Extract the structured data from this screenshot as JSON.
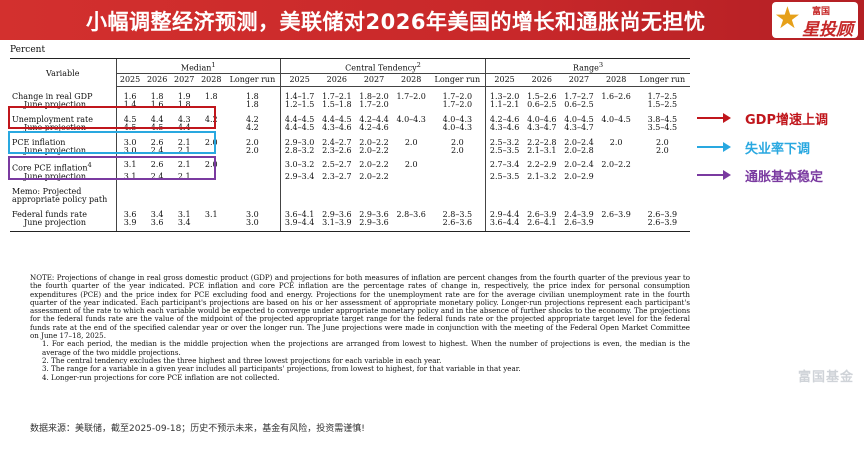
{
  "banner": {
    "title": "小幅调整经济预测，美联储对2026年美国的增长和通胀尚无担忧"
  },
  "logo": {
    "top": "富国",
    "main": "星投顾"
  },
  "table": {
    "unit": "Percent",
    "variable_header": "Variable",
    "groups": {
      "median": "Median",
      "median_sup": "1",
      "ct": "Central Tendency",
      "ct_sup": "2",
      "range": "Range",
      "range_sup": "3"
    },
    "years": [
      "2025",
      "2026",
      "2027",
      "2028",
      "Longer run"
    ],
    "rows": [
      {
        "label": "Change in real GDP",
        "sub": "June projection",
        "median": [
          [
            "1.6",
            "1.8",
            "1.9",
            "1.8",
            "1.8"
          ],
          [
            "1.4",
            "1.6",
            "1.8",
            "",
            "1.8"
          ]
        ],
        "ct": [
          [
            "1.4–1.7",
            "1.7–2.1",
            "1.8–2.0",
            "1.7–2.0",
            "1.7–2.0"
          ],
          [
            "1.2–1.5",
            "1.5–1.8",
            "1.7–2.0",
            "",
            "1.7–2.0"
          ]
        ],
        "range": [
          [
            "1.3–2.0",
            "1.5–2.6",
            "1.7–2.7",
            "1.6–2.6",
            "1.7–2.5"
          ],
          [
            "1.1–2.1",
            "0.6–2.5",
            "0.6–2.5",
            "",
            "1.5–2.5"
          ]
        ]
      },
      {
        "label": "Unemployment rate",
        "sub": "June projection",
        "median": [
          [
            "4.5",
            "4.4",
            "4.3",
            "4.2",
            "4.2"
          ],
          [
            "4.5",
            "4.5",
            "4.4",
            "",
            "4.2"
          ]
        ],
        "ct": [
          [
            "4.4–4.5",
            "4.4–4.5",
            "4.2–4.4",
            "4.0–4.3",
            "4.0–4.3"
          ],
          [
            "4.4–4.5",
            "4.3–4.6",
            "4.2–4.6",
            "",
            "4.0–4.3"
          ]
        ],
        "range": [
          [
            "4.2–4.6",
            "4.0–4.6",
            "4.0–4.5",
            "4.0–4.5",
            "3.8–4.5"
          ],
          [
            "4.3–4.6",
            "4.3–4.7",
            "4.3–4.7",
            "",
            "3.5–4.5"
          ]
        ]
      },
      {
        "label": "PCE inflation",
        "sub": "June projection",
        "median": [
          [
            "3.0",
            "2.6",
            "2.1",
            "2.0",
            "2.0"
          ],
          [
            "3.0",
            "2.4",
            "2.1",
            "",
            "2.0"
          ]
        ],
        "ct": [
          [
            "2.9–3.0",
            "2.4–2.7",
            "2.0–2.2",
            "2.0",
            "2.0"
          ],
          [
            "2.8–3.2",
            "2.3–2.6",
            "2.0–2.2",
            "",
            "2.0"
          ]
        ],
        "range": [
          [
            "2.5–3.2",
            "2.2–2.8",
            "2.0–2.4",
            "2.0",
            "2.0"
          ],
          [
            "2.5–3.5",
            "2.1–3.1",
            "2.0–2.8",
            "",
            "2.0"
          ]
        ]
      },
      {
        "label": "Core PCE inflation",
        "label_sup": "4",
        "sub": "June projection",
        "median": [
          [
            "3.1",
            "2.6",
            "2.1",
            "2.0",
            ""
          ],
          [
            "3.1",
            "2.4",
            "2.1",
            "",
            ""
          ]
        ],
        "ct": [
          [
            "3.0–3.2",
            "2.5–2.7",
            "2.0–2.2",
            "2.0",
            ""
          ],
          [
            "2.9–3.4",
            "2.3–2.7",
            "2.0–2.2",
            "",
            ""
          ]
        ],
        "range": [
          [
            "2.7–3.4",
            "2.2–2.9",
            "2.0–2.4",
            "2.0–2.2",
            ""
          ],
          [
            "2.5–3.5",
            "2.1–3.2",
            "2.0–2.9",
            "",
            ""
          ]
        ]
      }
    ],
    "memo": {
      "line1": "Memo: Projected",
      "line2": "appropriate policy path"
    },
    "funds": {
      "label": "Federal funds rate",
      "sub": "June projection",
      "median": [
        [
          "3.6",
          "3.4",
          "3.1",
          "3.1",
          "3.0"
        ],
        [
          "3.9",
          "3.6",
          "3.4",
          "",
          "3.0"
        ]
      ],
      "ct": [
        [
          "3.6–4.1",
          "2.9–3.6",
          "2.9–3.6",
          "2.8–3.6",
          "2.8–3.5"
        ],
        [
          "3.9–4.4",
          "3.1–3.9",
          "2.9–3.6",
          "",
          "2.6–3.6"
        ]
      ],
      "range": [
        [
          "2.9–4.4",
          "2.6–3.9",
          "2.4–3.9",
          "2.6–3.9",
          "2.6–3.9"
        ],
        [
          "3.6–4.4",
          "2.6–4.1",
          "2.6–3.9",
          "",
          "2.6–3.9"
        ]
      ]
    }
  },
  "annotations": {
    "gdp": "GDP增速上调",
    "unemployment": "失业率下调",
    "inflation": "通胀基本稳定",
    "gdp_color": "#c0161c",
    "unemployment_color": "#29a8e0",
    "inflation_color": "#7a3aa0"
  },
  "note": {
    "main": "NOTE: Projections of change in real gross domestic product (GDP) and projections for both measures of inflation are percent changes from the fourth quarter of the previous year to the fourth quarter of the year indicated. PCE inflation and core PCE inflation are the percentage rates of change in, respectively, the price index for personal consumption expenditures (PCE) and the price index for PCE excluding food and energy. Projections for the unemployment rate are for the average civilian unemployment rate in the fourth quarter of the year indicated. Each participant's projections are based on his or her assessment of appropriate monetary policy. Longer-run projections represent each participant's assessment of the rate to which each variable would be expected to converge under appropriate monetary policy and in the absence of further shocks to the economy. The projections for the federal funds rate are the value of the midpoint of the projected appropriate target range for the federal funds rate or the projected appropriate target level for the federal funds rate at the end of the specified calendar year or over the longer run. The June projections were made in conjunction with the meeting of the Federal Open Market Committee on June 17–18, 2025.",
    "fn1": "1. For each period, the median is the middle projection when the projections are arranged from lowest to highest. When the number of projections is even, the median is the average of the two middle projections.",
    "fn2": "2. The central tendency excludes the three highest and three lowest projections for each variable in each year.",
    "fn3": "3. The range for a variable in a given year includes all participants' projections, from lowest to highest, for that variable in that year.",
    "fn4": "4. Longer-run projections for core PCE inflation are not collected."
  },
  "footer": "数据来源：美联储，截至2025-09-18；历史不预示未来，基金有风险，投资需谨慎!",
  "watermark": "富国基金"
}
